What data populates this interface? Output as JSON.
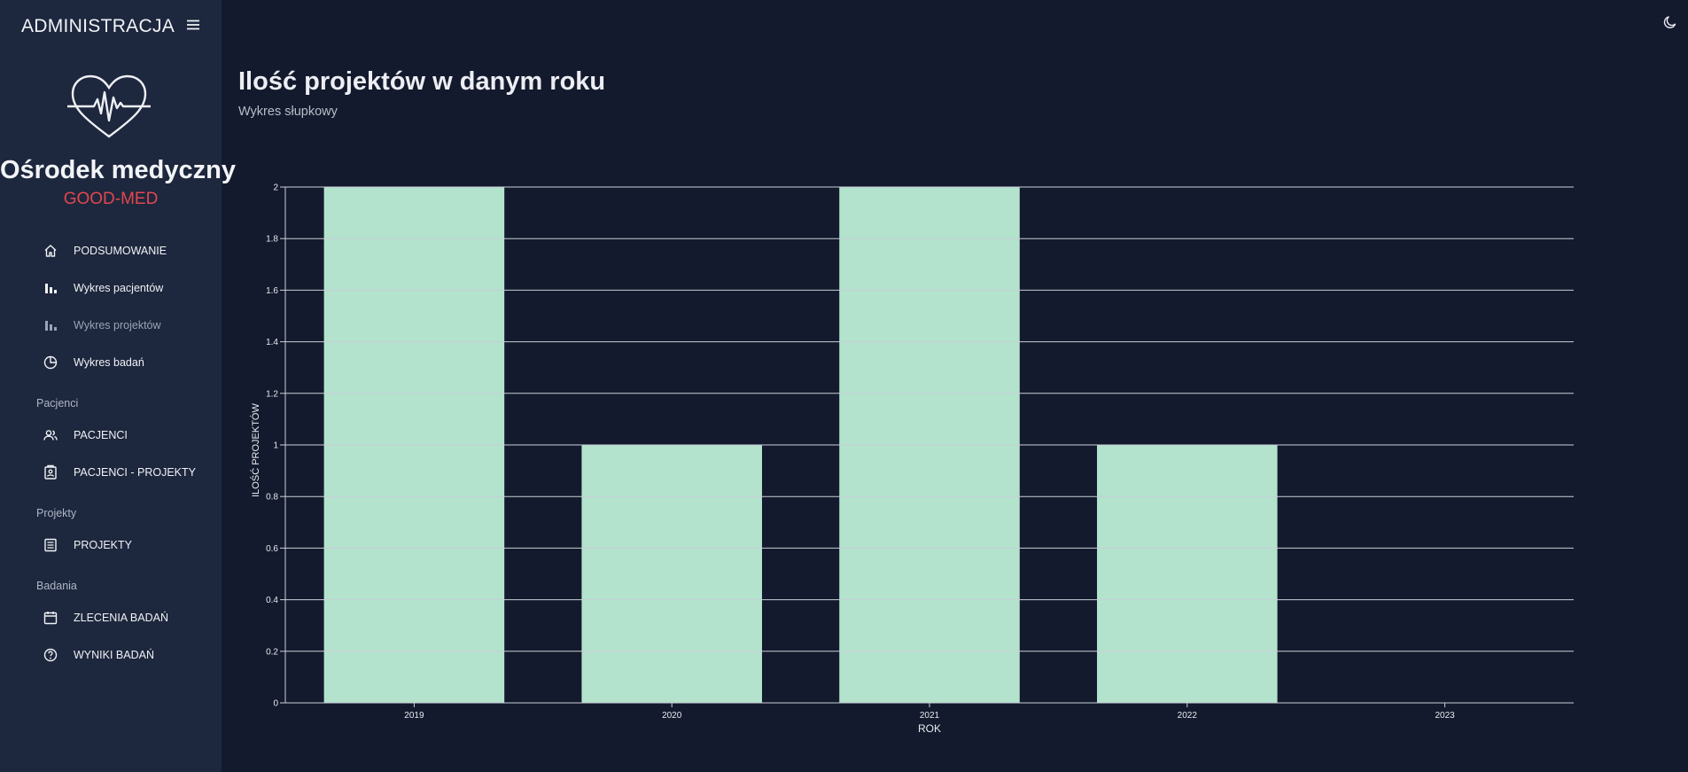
{
  "sidebar": {
    "title": "ADMINISTRACJA",
    "org_name": "Ośrodek medyczny",
    "org_sub": "GOOD-MED",
    "org_sub_color": "#e2474f",
    "items": [
      {
        "label": "PODSUMOWANIE",
        "icon": "home-icon"
      },
      {
        "label": "Wykres pacjentów",
        "icon": "bar-chart-icon"
      },
      {
        "label": "Wykres projektów",
        "icon": "bar-chart-icon",
        "active": true
      },
      {
        "label": "Wykres badań",
        "icon": "pie-chart-icon"
      },
      {
        "label": "PACJENCI",
        "icon": "users-icon"
      },
      {
        "label": "PACJENCI - PROJEKTY",
        "icon": "badge-icon"
      },
      {
        "label": "PROJEKTY",
        "icon": "list-icon"
      },
      {
        "label": "ZLECENIA BADAŃ",
        "icon": "calendar-icon"
      },
      {
        "label": "WYNIKI BADAŃ",
        "icon": "help-circle-icon"
      }
    ],
    "sections": [
      "Pacjenci",
      "Projekty",
      "Badania"
    ]
  },
  "main": {
    "title": "Ilość projektów w danym roku",
    "subtitle": "Wykres słupkowy"
  },
  "chart_data": {
    "type": "bar",
    "categories": [
      "2019",
      "2020",
      "2021",
      "2022",
      "2023"
    ],
    "values": [
      2,
      1,
      2,
      1,
      0
    ],
    "xlabel": "ROK",
    "ylabel": "ILOŚĆ PROJEKTÓW",
    "ylim": [
      0,
      2
    ],
    "yticks": [
      "0",
      "0.2",
      "0.4",
      "0.6",
      "0.8",
      "1",
      "1.2",
      "1.4",
      "1.6",
      "1.8",
      "2"
    ],
    "bar_color": "#b3e3cd",
    "grid": true
  }
}
